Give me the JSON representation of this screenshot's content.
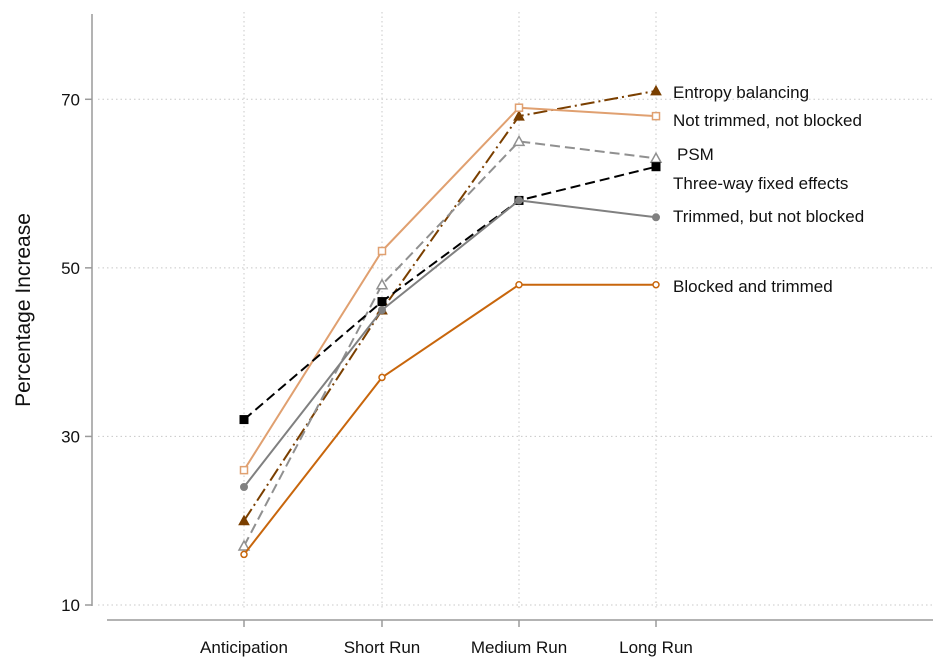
{
  "chart_data": {
    "type": "line",
    "title": "",
    "xlabel": "",
    "ylabel": "Percentage Increase",
    "categories": [
      "Anticipation",
      "Short Run",
      "Medium Run",
      "Long Run"
    ],
    "ylim": [
      10,
      80
    ],
    "yticks": [
      10,
      30,
      50,
      70
    ],
    "grid": true,
    "legend": "inline labels at right end of lines",
    "series": [
      {
        "name": "Entropy balancing",
        "values": [
          20,
          45,
          68,
          71
        ],
        "color": "#7a3f00",
        "dash": "dash-dot",
        "marker": "triangle-filled"
      },
      {
        "name": "Not trimmed, not blocked",
        "values": [
          26,
          52,
          69,
          68
        ],
        "color": "#e0a070",
        "dash": "solid",
        "marker": "square-open"
      },
      {
        "name": "PSM",
        "values": [
          17,
          48,
          65,
          63
        ],
        "color": "#909090",
        "dash": "dash",
        "marker": "triangle-open"
      },
      {
        "name": "Three-way fixed effects",
        "values": [
          32,
          46,
          58,
          62
        ],
        "color": "#000000",
        "dash": "dash",
        "marker": "square-filled"
      },
      {
        "name": "Trimmed, but not blocked",
        "values": [
          24,
          45,
          58,
          56
        ],
        "color": "#808080",
        "dash": "solid",
        "marker": "circle-filled"
      },
      {
        "name": "Blocked and trimmed",
        "values": [
          16,
          37,
          48,
          48
        ],
        "color": "#c8660c",
        "dash": "solid",
        "marker": "circle-open"
      }
    ]
  }
}
